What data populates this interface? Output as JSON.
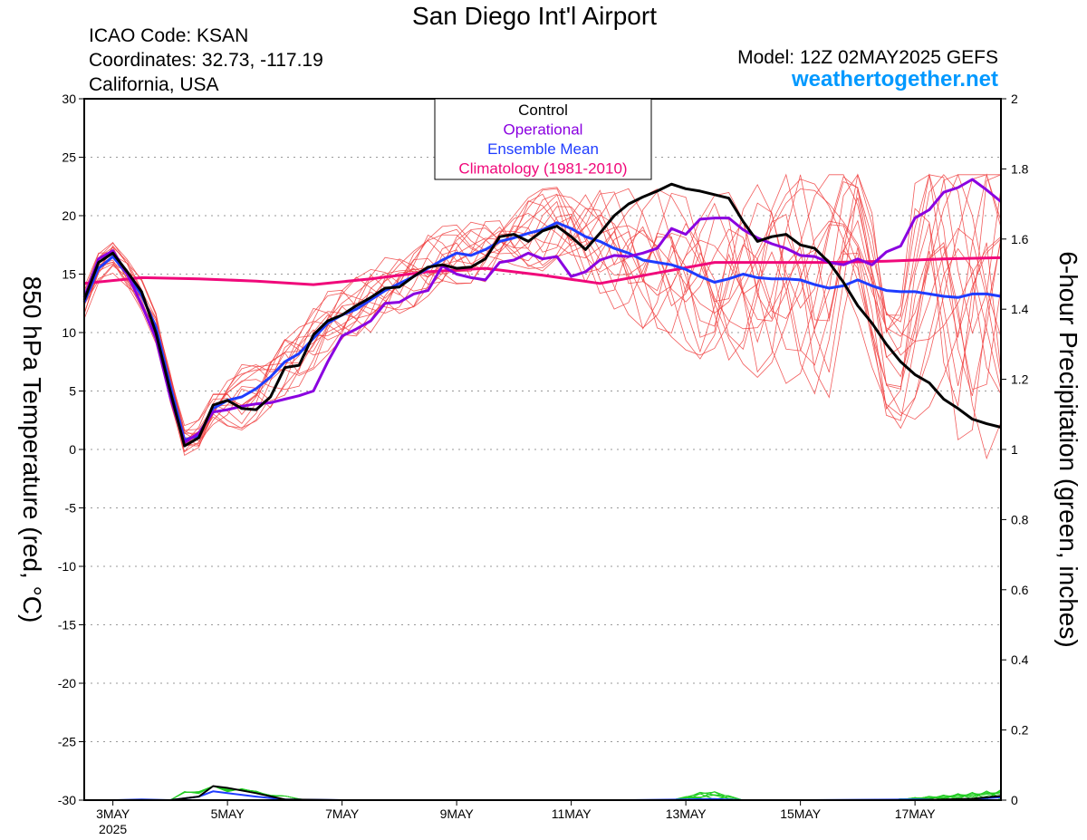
{
  "header": {
    "title": "San Diego Int'l Airport",
    "icao": "ICAO Code: KSAN",
    "coordinates": "Coordinates: 32.73, -117.19",
    "region": "California, USA",
    "model": "Model: 12Z 02MAY2025 GEFS",
    "site": "weathertogether.net",
    "site_color": "#0099ff"
  },
  "chart_data": {
    "type": "line",
    "title": "San Diego Int'l Airport",
    "ylabel": "850 hPa Temperature (red, °C)",
    "y2label": "6-hour Precipitation (green, inches)",
    "ylim": [
      -30,
      30
    ],
    "y2lim": [
      0,
      2
    ],
    "yticks": [
      30,
      25,
      20,
      15,
      10,
      5,
      0,
      -5,
      -10,
      -15,
      -20,
      -25,
      -30
    ],
    "y2ticks": [
      2,
      1.8,
      1.6,
      1.4,
      1.2,
      1,
      0.8,
      0.6,
      0.4,
      0.2,
      0
    ],
    "x_range_days": [
      2.5,
      18.5
    ],
    "x_ticks": [
      {
        "day": 3,
        "label": "3MAY"
      },
      {
        "day": 5,
        "label": "5MAY"
      },
      {
        "day": 7,
        "label": "7MAY"
      },
      {
        "day": 9,
        "label": "9MAY"
      },
      {
        "day": 11,
        "label": "11MAY"
      },
      {
        "day": 13,
        "label": "13MAY"
      },
      {
        "day": 15,
        "label": "15MAY"
      },
      {
        "day": 17,
        "label": "17MAY"
      }
    ],
    "year_label": "2025",
    "grid": true,
    "legend": {
      "position": "top-center",
      "entries": [
        {
          "label": "Control",
          "color": "#000000"
        },
        {
          "label": "Operational",
          "color": "#8a00e0"
        },
        {
          "label": "Ensemble Mean",
          "color": "#1f3cff"
        },
        {
          "label": "Climatology (1981-2010)",
          "color": "#f0087a"
        }
      ]
    },
    "colors": {
      "members": "#f04040",
      "control": "#000000",
      "operational": "#8a00e0",
      "mean": "#1f3cff",
      "climatology": "#f0087a",
      "precip": "#22cc22"
    },
    "series": [
      {
        "name": "Control",
        "x": [
          2.5,
          2.75,
          3.0,
          3.25,
          3.5,
          3.75,
          4.0,
          4.25,
          4.5,
          4.75,
          5.0,
          5.25,
          5.5,
          5.75,
          6.0,
          6.25,
          6.5,
          6.75,
          7.0,
          7.25,
          7.5,
          7.75,
          8.0,
          8.25,
          8.5,
          8.75,
          9.0,
          9.25,
          9.5,
          9.75,
          10.0,
          10.25,
          10.5,
          10.75,
          11.0,
          11.25,
          11.5,
          11.75,
          12.0,
          12.25,
          12.5,
          12.75,
          13.0,
          13.25,
          13.5,
          13.75,
          14.0,
          14.25,
          14.5,
          14.75,
          15.0,
          15.25,
          15.5,
          15.75,
          16.0,
          16.25,
          16.5,
          16.75,
          17.0,
          17.25,
          17.5,
          17.75,
          18.0,
          18.25,
          18.5
        ],
        "values": [
          12.8,
          16.0,
          16.8,
          15.2,
          13.5,
          10.0,
          5.0,
          0.3,
          1.0,
          3.8,
          4.2,
          3.5,
          3.4,
          4.5,
          7.0,
          7.2,
          9.8,
          11.0,
          11.5,
          12.3,
          13.0,
          13.8,
          13.9,
          14.8,
          15.6,
          15.8,
          15.5,
          15.6,
          16.3,
          18.2,
          18.4,
          17.8,
          18.7,
          19.1,
          18.2,
          17.1,
          18.5,
          20.0,
          21.0,
          21.6,
          22.1,
          22.7,
          22.3,
          22.1,
          21.8,
          21.5,
          19.5,
          17.8,
          18.2,
          18.4,
          17.5,
          17.2,
          16.0,
          14.3,
          12.3,
          10.8,
          9.0,
          7.5,
          6.4,
          5.7,
          4.3,
          3.5,
          2.6,
          2.2,
          1.9
        ]
      },
      {
        "name": "Operational",
        "x": [
          2.5,
          2.75,
          3.0,
          3.25,
          3.5,
          3.75,
          4.0,
          4.25,
          4.5,
          4.75,
          5.0,
          5.25,
          5.5,
          5.75,
          6.0,
          6.25,
          6.5,
          6.75,
          7.0,
          7.25,
          7.5,
          7.75,
          8.0,
          8.25,
          8.5,
          8.75,
          9.0,
          9.25,
          9.5,
          9.75,
          10.0,
          10.25,
          10.5,
          10.75,
          11.0,
          11.25,
          11.5,
          11.75,
          12.0,
          12.25,
          12.5,
          12.75,
          13.0,
          13.25,
          13.5,
          13.75,
          14.0,
          14.25,
          14.5,
          14.75,
          15.0,
          15.25,
          15.5,
          15.75,
          16.0,
          16.25,
          16.5,
          16.75,
          17.0,
          17.25,
          17.5,
          17.75,
          18.0,
          18.25,
          18.5
        ],
        "values": [
          13.0,
          16.3,
          17.0,
          15.0,
          12.4,
          9.5,
          4.5,
          0.6,
          1.4,
          3.2,
          3.4,
          3.7,
          3.9,
          4.0,
          4.3,
          4.6,
          5.0,
          7.5,
          9.7,
          10.3,
          11.0,
          12.5,
          12.6,
          13.3,
          13.6,
          15.7,
          15.0,
          14.7,
          14.5,
          16.0,
          16.2,
          16.8,
          16.3,
          16.5,
          14.8,
          15.2,
          16.2,
          16.6,
          16.5,
          16.8,
          17.2,
          18.9,
          18.4,
          19.7,
          19.8,
          19.8,
          18.8,
          18.1,
          17.6,
          17.2,
          16.6,
          16.5,
          16.0,
          15.8,
          16.3,
          15.8,
          16.9,
          17.4,
          19.8,
          20.5,
          22.0,
          22.4,
          23.1,
          22.2,
          21.2
        ]
      },
      {
        "name": "Ensemble Mean",
        "x": [
          2.5,
          2.75,
          3.0,
          3.25,
          3.5,
          3.75,
          4.0,
          4.25,
          4.5,
          4.75,
          5.0,
          5.25,
          5.5,
          5.75,
          6.0,
          6.25,
          6.5,
          6.75,
          7.0,
          7.25,
          7.5,
          7.75,
          8.0,
          8.25,
          8.5,
          8.75,
          9.0,
          9.25,
          9.5,
          9.75,
          10.0,
          10.25,
          10.5,
          10.75,
          11.0,
          11.25,
          11.5,
          11.75,
          12.0,
          12.25,
          12.5,
          12.75,
          13.0,
          13.25,
          13.5,
          13.75,
          14.0,
          14.25,
          14.5,
          14.75,
          15.0,
          15.25,
          15.5,
          15.75,
          16.0,
          16.25,
          16.5,
          16.75,
          17.0,
          17.25,
          17.5,
          17.75,
          18.0,
          18.25,
          18.5
        ],
        "values": [
          12.6,
          15.5,
          16.5,
          15.0,
          13.2,
          10.5,
          5.5,
          0.8,
          1.2,
          3.5,
          4.2,
          4.5,
          5.2,
          6.2,
          7.5,
          8.2,
          9.5,
          10.8,
          11.5,
          12.0,
          12.8,
          13.6,
          14.2,
          14.8,
          15.5,
          16.2,
          16.8,
          16.6,
          17.1,
          17.8,
          18.1,
          18.5,
          18.8,
          19.4,
          18.9,
          18.2,
          17.8,
          17.2,
          16.8,
          16.2,
          16.0,
          15.8,
          15.4,
          14.8,
          14.3,
          14.6,
          15.0,
          14.7,
          14.6,
          14.6,
          14.5,
          14.1,
          13.8,
          14.0,
          14.5,
          14.0,
          13.6,
          13.5,
          13.5,
          13.3,
          13.1,
          13.0,
          13.3,
          13.3,
          13.1
        ]
      },
      {
        "name": "Climatology (1981-2010)",
        "x": [
          2.5,
          3.5,
          4.5,
          5.5,
          6.5,
          7.5,
          8.5,
          9.5,
          10.5,
          11.5,
          12.5,
          13.5,
          14.5,
          15.5,
          16.5,
          17.5,
          18.5
        ],
        "values": [
          14.2,
          14.7,
          14.6,
          14.4,
          14.1,
          14.6,
          15.2,
          15.5,
          14.9,
          14.2,
          15.1,
          16.0,
          16.0,
          16.0,
          16.1,
          16.3,
          16.4
        ]
      }
    ],
    "precip_series": [
      {
        "name": "Ensemble mean precipitation",
        "x": [
          2.5,
          3.0,
          3.5,
          4.0,
          4.5,
          4.75,
          5.0,
          5.5,
          6.0,
          7.0,
          9.0,
          11.0,
          12.0,
          13.0,
          13.5,
          14.0,
          15.0,
          16.0,
          17.0,
          17.5,
          18.0,
          18.5
        ],
        "values": [
          0.0,
          0.0,
          0.002,
          0.0,
          0.01,
          0.025,
          0.02,
          0.01,
          0.002,
          0.0,
          0.0,
          0.0,
          0.0,
          0.002,
          0.003,
          0.0,
          0.0,
          0.001,
          0.002,
          0.001,
          0.003,
          0.008
        ]
      },
      {
        "name": "Control precipitation",
        "x": [
          2.5,
          3.0,
          3.5,
          4.0,
          4.5,
          4.75,
          5.0,
          5.5,
          6.0,
          7.0,
          9.0,
          13.0,
          15.0,
          17.0,
          18.0,
          18.5
        ],
        "values": [
          0.0,
          0.0,
          0.0,
          0.0,
          0.01,
          0.04,
          0.035,
          0.02,
          0.002,
          0.0,
          0.0,
          0.0,
          0.0,
          0.0,
          0.004,
          0.012
        ]
      }
    ]
  }
}
